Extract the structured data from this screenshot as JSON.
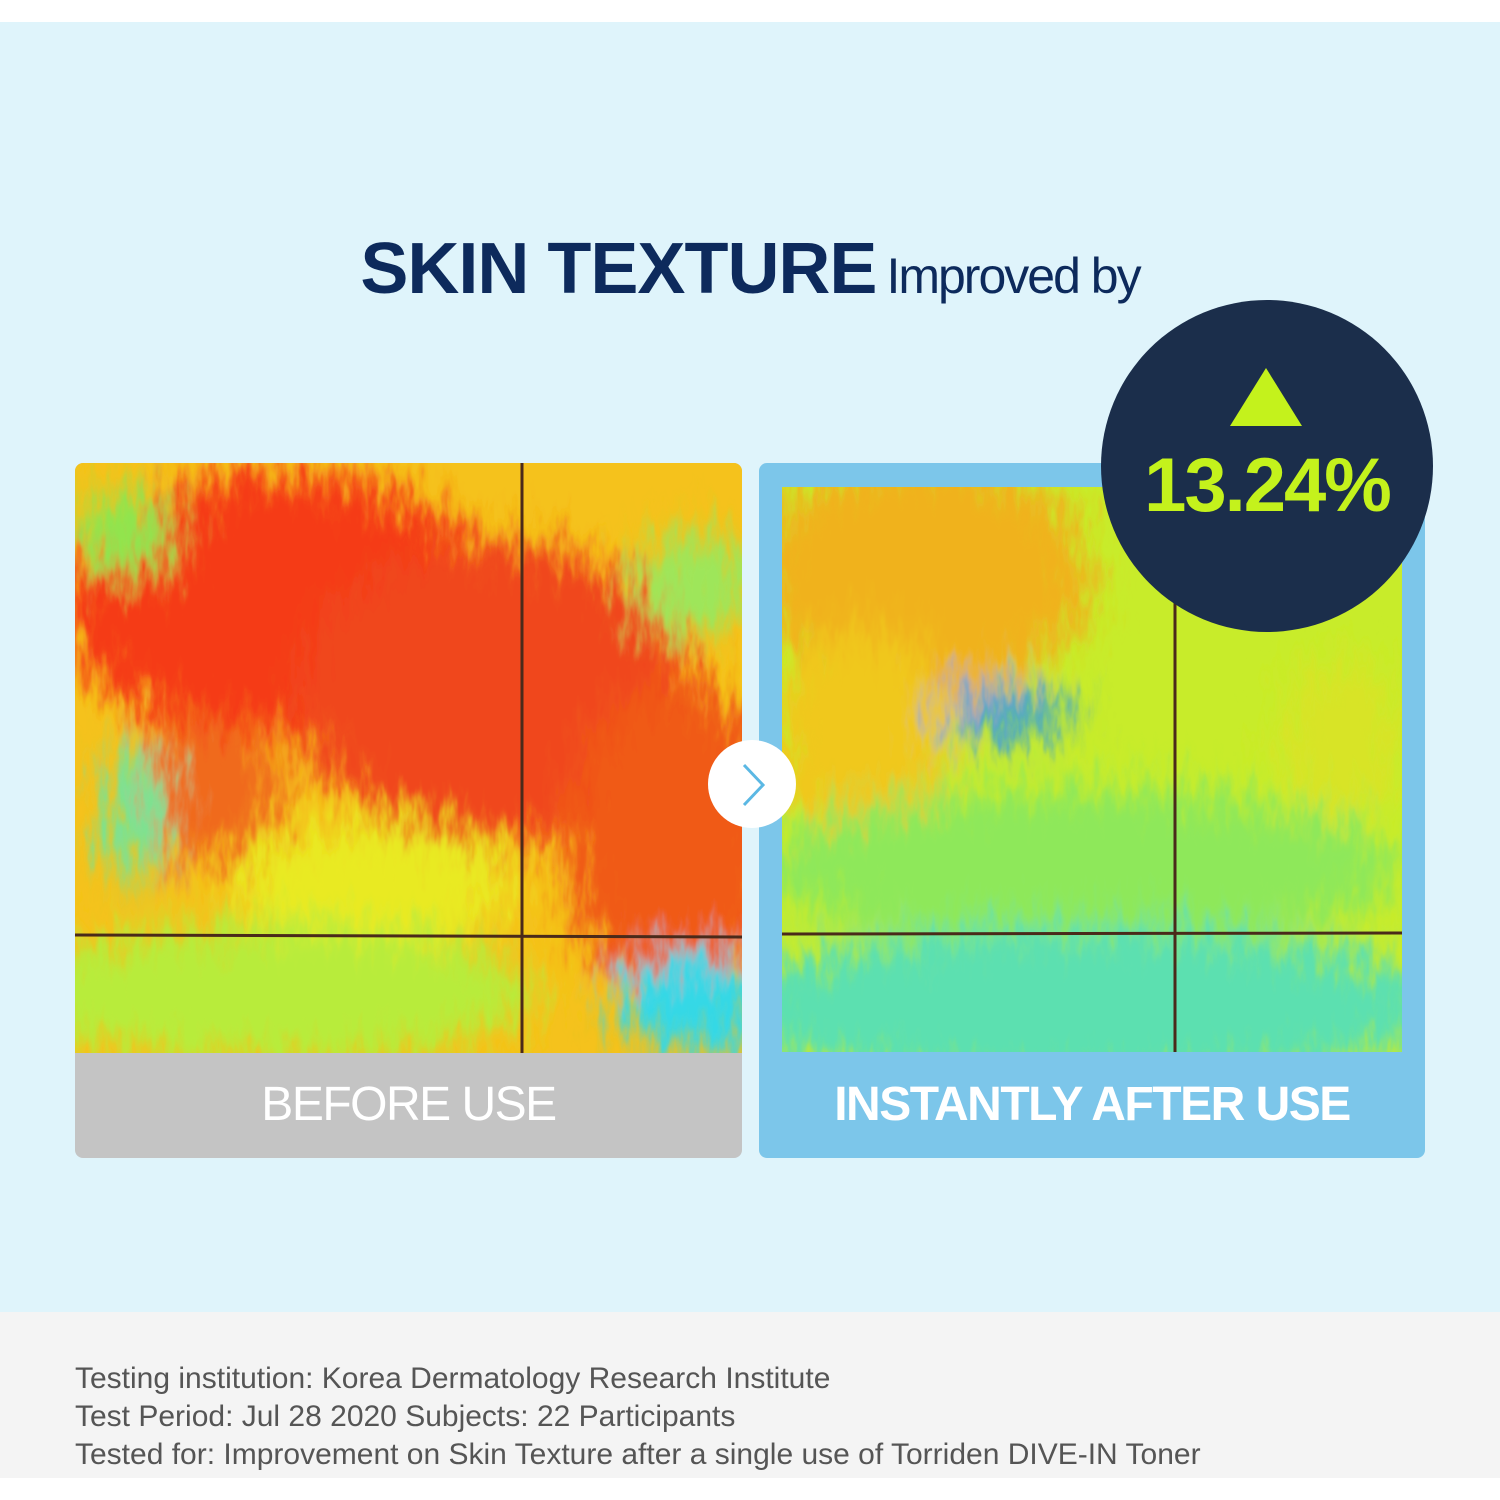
{
  "header": {
    "title": "SKIN TEXTURE",
    "subtitle": "Improved by"
  },
  "badge": {
    "value": "13.24%"
  },
  "panels": [
    {
      "label": "BEFORE USE"
    },
    {
      "label": "INSTANTLY AFTER USE"
    }
  ],
  "footnotes": [
    "Testing institution: Korea Dermatology Research Institute",
    "Test Period: Jul 28 2020 Subjects: 22 Participants",
    "Tested for: Improvement on Skin Texture after a single use of Torriden DIVE-IN Toner"
  ]
}
